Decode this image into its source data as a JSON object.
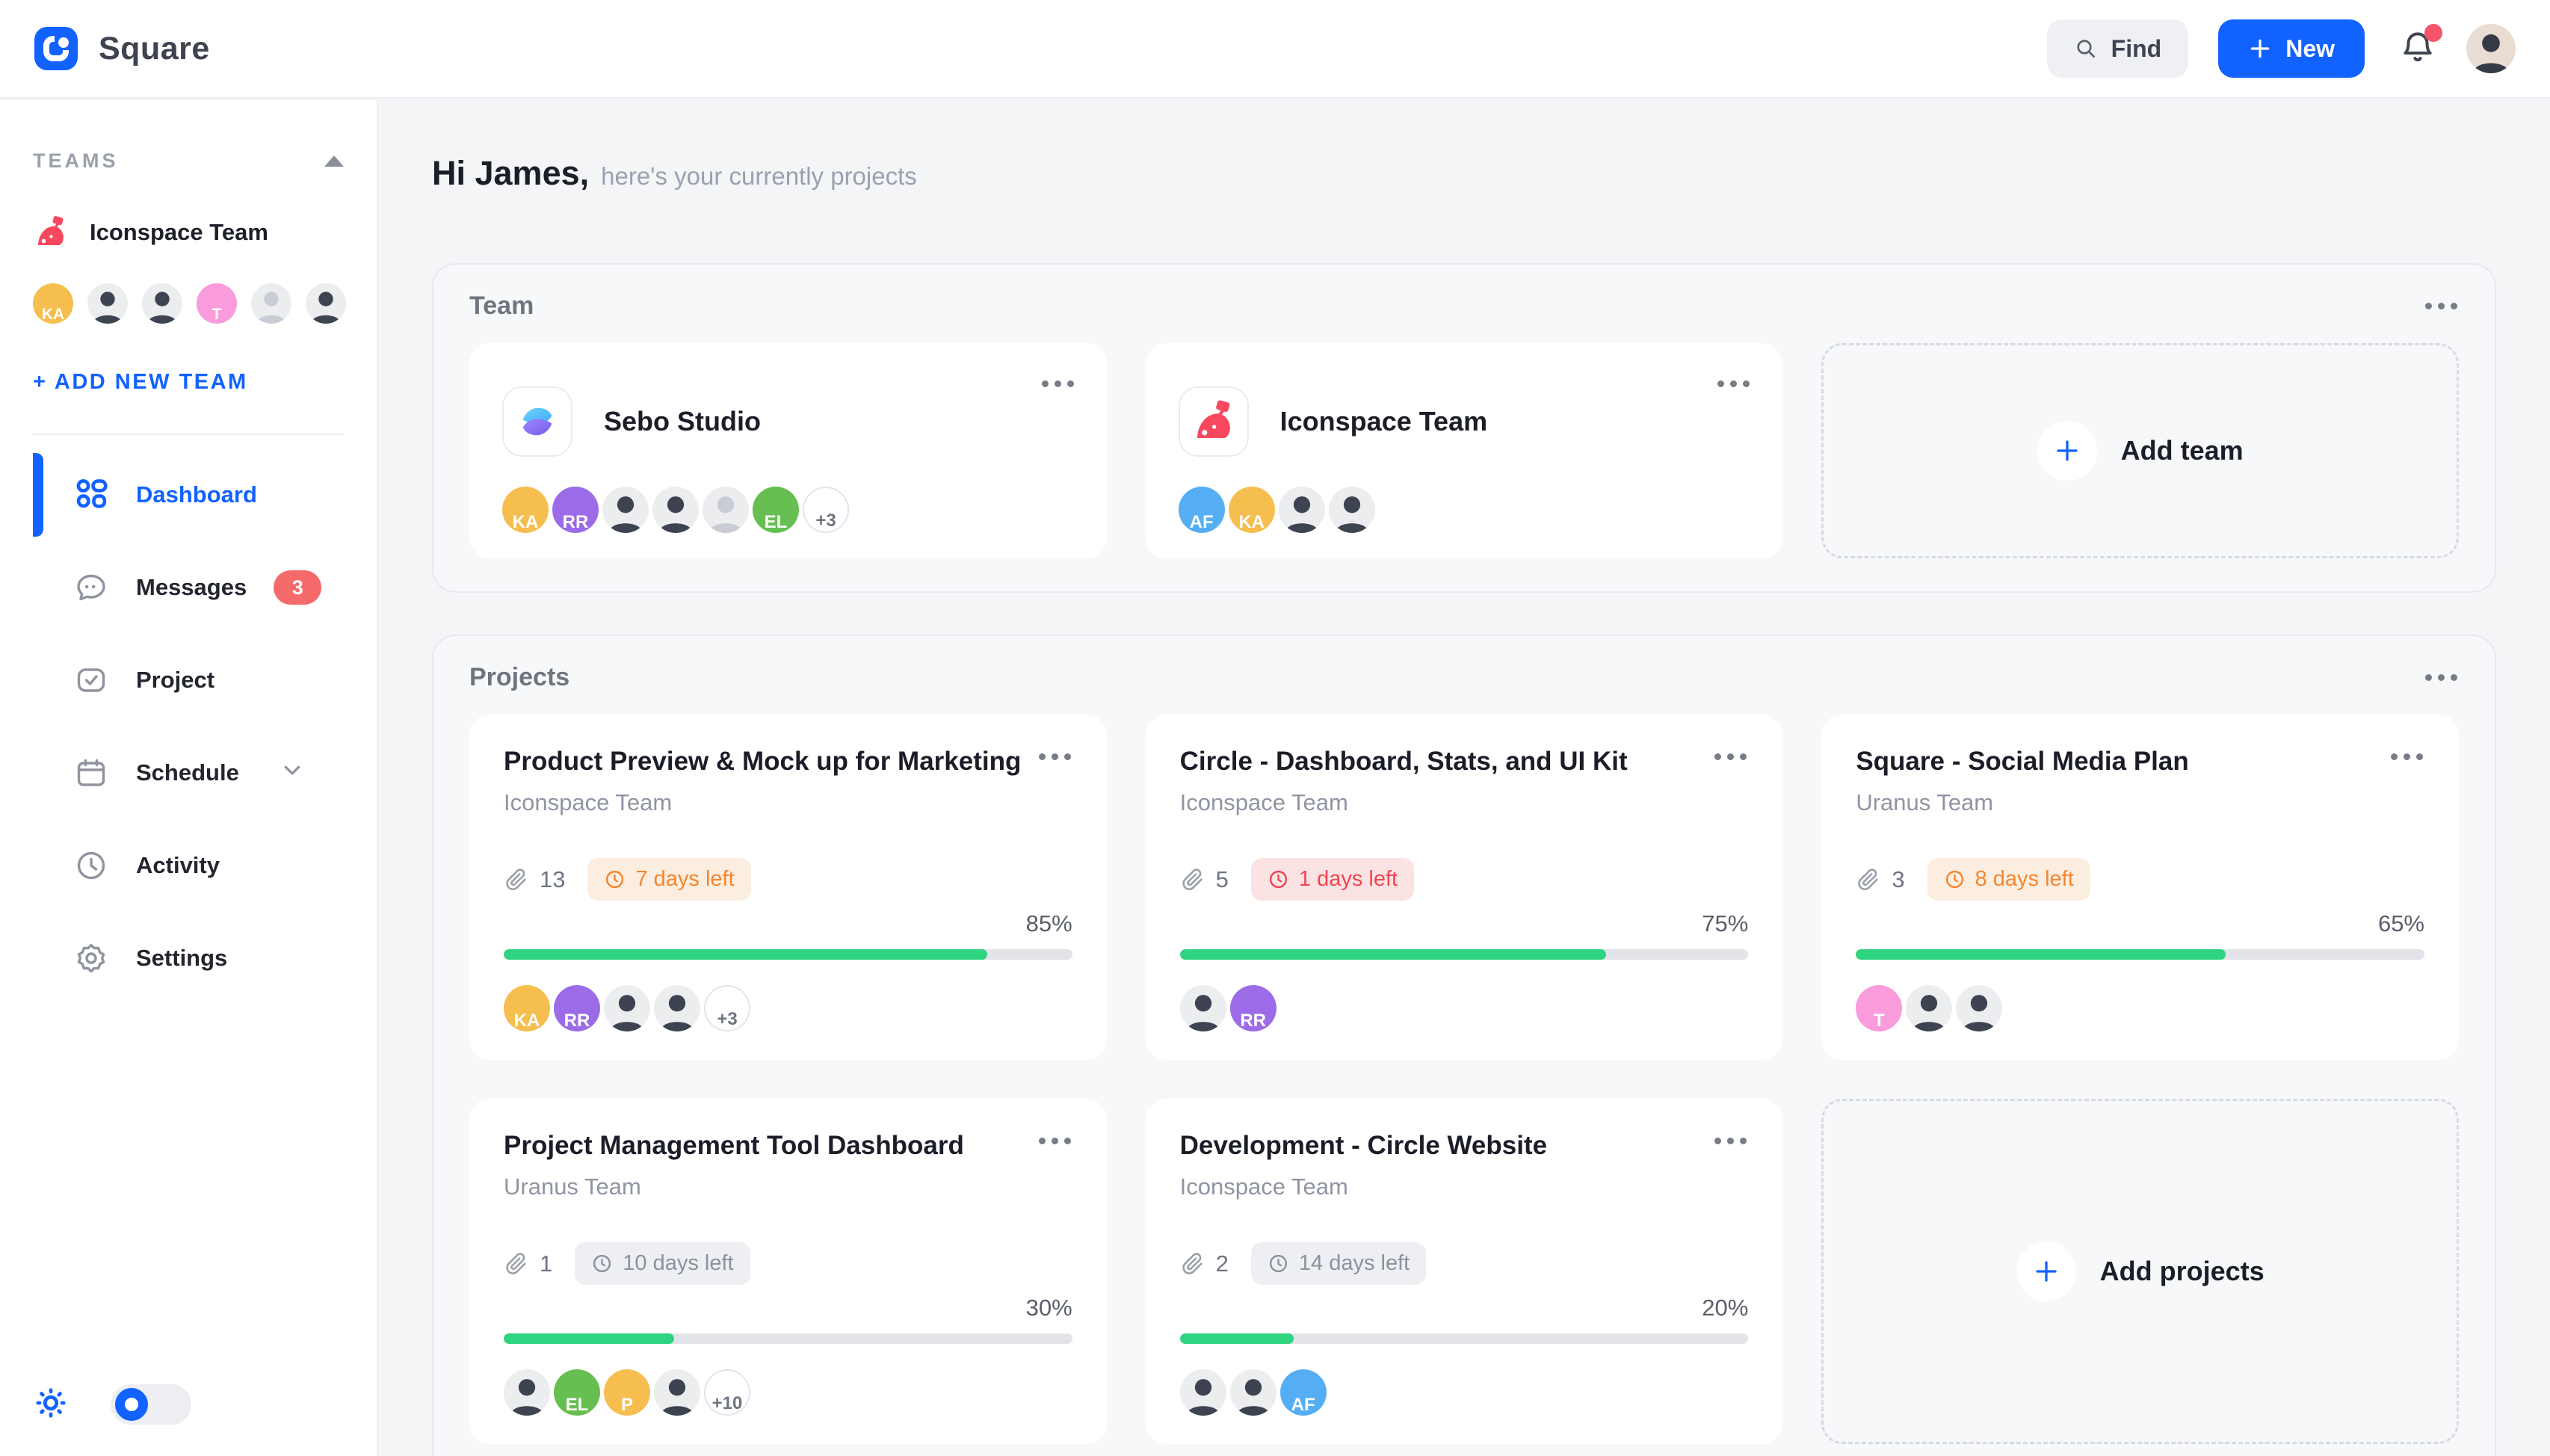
{
  "colors": {
    "accent": "#1262FF",
    "progress_green": "#2ED47F",
    "badge_red": "#F56B6B"
  },
  "header": {
    "app_name": "Square",
    "find_label": "Find",
    "new_label": "New",
    "avatar": {
      "kind": "photo",
      "bg": "#E8DCD3",
      "fill": "#343A46"
    }
  },
  "sidebar": {
    "teams_label": "TEAMS",
    "team": {
      "name": "Iconspace Team",
      "icon": "rocket-icon"
    },
    "team_members": [
      {
        "kind": "initials",
        "text": "KA",
        "color": "#F6BE4F"
      },
      {
        "kind": "photo"
      },
      {
        "kind": "photo"
      },
      {
        "kind": "initials",
        "text": "T",
        "color": "#FA9BDC"
      },
      {
        "kind": "photo",
        "fill": "#C9CCD4"
      },
      {
        "kind": "photo"
      }
    ],
    "add_new_team_label": "+ ADD NEW TEAM",
    "menu": [
      {
        "label": "Dashboard",
        "icon": "dashboard-icon",
        "active": true
      },
      {
        "label": "Messages",
        "icon": "messages-icon",
        "badge": "3"
      },
      {
        "label": "Project",
        "icon": "project-icon"
      },
      {
        "label": "Schedule",
        "icon": "schedule-icon",
        "chevron": true
      },
      {
        "label": "Activity",
        "icon": "activity-icon"
      },
      {
        "label": "Settings",
        "icon": "settings-icon"
      }
    ]
  },
  "greeting": {
    "title": "Hi James,",
    "subtitle": "here's your currently projects"
  },
  "team_section": {
    "title": "Team",
    "cards": [
      {
        "name": "Sebo Studio",
        "icon": "sebo-logo",
        "members": [
          {
            "kind": "initials",
            "text": "KA",
            "color": "#F6BE4F"
          },
          {
            "kind": "initials",
            "text": "RR",
            "color": "#9B6BE8"
          },
          {
            "kind": "photo"
          },
          {
            "kind": "photo"
          },
          {
            "kind": "photo",
            "fill": "#C9CCD4"
          },
          {
            "kind": "initials",
            "text": "EL",
            "color": "#67BF51"
          },
          {
            "kind": "more",
            "text": "+3"
          }
        ]
      },
      {
        "name": "Iconspace Team",
        "icon": "rocket-icon",
        "members": [
          {
            "kind": "initials",
            "text": "AF",
            "color": "#55AEF3"
          },
          {
            "kind": "initials",
            "text": "KA",
            "color": "#F6BE4F"
          },
          {
            "kind": "photo"
          },
          {
            "kind": "photo"
          }
        ]
      }
    ],
    "add_label": "Add team"
  },
  "projects_section": {
    "title": "Projects",
    "cards": [
      {
        "title": "Product Preview & Mock up for Marketing",
        "team": "Iconspace Team",
        "attachments": "13",
        "due": "7 days left",
        "due_tone": "orange",
        "progress": 85,
        "progress_label": "85%",
        "members": [
          {
            "kind": "initials",
            "text": "KA",
            "color": "#F6BE4F"
          },
          {
            "kind": "initials",
            "text": "RR",
            "color": "#9B6BE8"
          },
          {
            "kind": "photo"
          },
          {
            "kind": "photo"
          },
          {
            "kind": "more",
            "text": "+3"
          }
        ]
      },
      {
        "title": "Circle - Dashboard, Stats, and UI Kit",
        "team": "Iconspace Team",
        "attachments": "5",
        "due": "1 days left",
        "due_tone": "red",
        "progress": 75,
        "progress_label": "75%",
        "members": [
          {
            "kind": "photo"
          },
          {
            "kind": "initials",
            "text": "RR",
            "color": "#9B6BE8"
          }
        ]
      },
      {
        "title": "Square - Social Media Plan",
        "team": "Uranus Team",
        "attachments": "3",
        "due": "8 days left",
        "due_tone": "orange",
        "progress": 65,
        "progress_label": "65%",
        "members": [
          {
            "kind": "initials",
            "text": "T",
            "color": "#FA9BDC"
          },
          {
            "kind": "photo"
          },
          {
            "kind": "photo"
          }
        ]
      },
      {
        "title": "Project Management Tool Dashboard",
        "team": "Uranus Team",
        "attachments": "1",
        "due": "10 days left",
        "due_tone": "gray",
        "progress": 30,
        "progress_label": "30%",
        "members": [
          {
            "kind": "photo"
          },
          {
            "kind": "initials",
            "text": "EL",
            "color": "#67BF51"
          },
          {
            "kind": "initials",
            "text": "P",
            "color": "#F6BE4F"
          },
          {
            "kind": "photo"
          },
          {
            "kind": "more",
            "text": "+10"
          }
        ]
      },
      {
        "title": "Development - Circle Website",
        "team": "Iconspace Team",
        "attachments": "2",
        "due": "14 days left",
        "due_tone": "gray",
        "progress": 20,
        "progress_label": "20%",
        "members": [
          {
            "kind": "photo"
          },
          {
            "kind": "photo"
          },
          {
            "kind": "initials",
            "text": "AF",
            "color": "#55AEF3"
          }
        ]
      }
    ],
    "add_label": "Add projects"
  }
}
